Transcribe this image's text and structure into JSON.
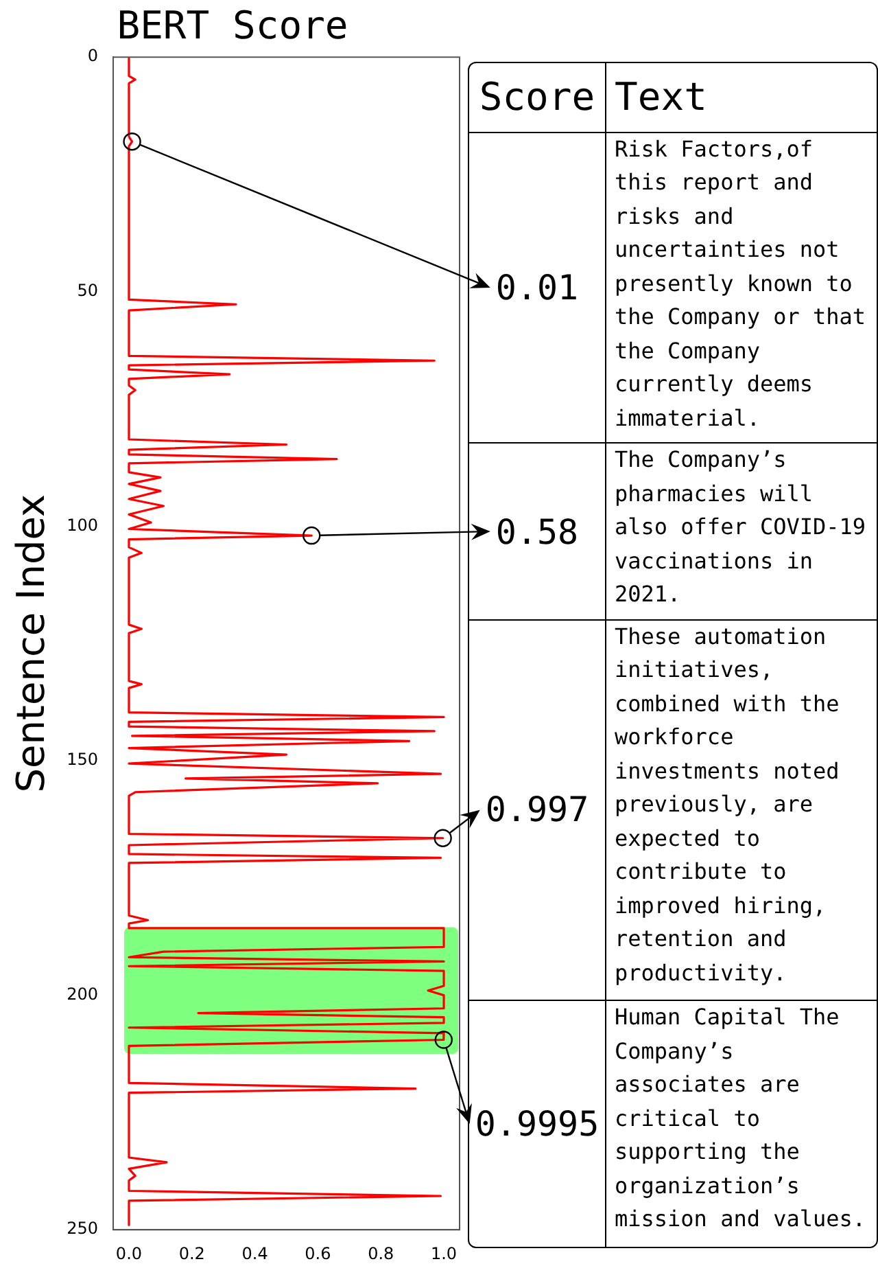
{
  "chart_data": {
    "type": "line",
    "title": "BERT Score",
    "ylabel": "Sentence Index",
    "xlim": [
      -0.05,
      1.05
    ],
    "ylim": [
      250,
      0
    ],
    "xticks": [
      {
        "value": 0,
        "label": "0.0"
      },
      {
        "value": 0.2,
        "label": "0.2"
      },
      {
        "value": 0.4,
        "label": "0.4"
      },
      {
        "value": 0.6,
        "label": "0.6"
      },
      {
        "value": 0.8,
        "label": "0.8"
      },
      {
        "value": 1,
        "label": "1.0"
      }
    ],
    "yticks": [
      0,
      50,
      100,
      150,
      200,
      250
    ],
    "grid": false,
    "legend": false,
    "marker": "none",
    "series": [
      {
        "color": "#ff0000",
        "x": [
          0,
          0,
          0.02,
          0,
          0,
          0.01,
          0,
          0,
          0.34,
          0,
          0,
          0.97,
          0,
          0,
          0.32,
          0,
          0,
          0.02,
          0,
          0,
          0.5,
          0,
          0,
          0.66,
          0,
          0,
          0.1,
          0,
          0.1,
          0,
          0.11,
          0,
          0.07,
          0,
          0.58,
          0,
          0,
          0.04,
          0,
          0,
          0.04,
          0,
          0,
          0.04,
          0,
          0,
          1.0,
          0,
          0,
          0.97,
          0.01,
          0.89,
          0,
          0.5,
          0,
          0.99,
          0.18,
          0.79,
          0.02,
          0,
          0,
          0.997,
          0,
          0,
          0.99,
          0,
          0,
          0.06,
          0,
          0,
          1.0,
          1.0,
          0.11,
          0,
          1.0,
          0,
          1.0,
          1.0,
          0.95,
          1.0,
          1.0,
          0.22,
          1.0,
          1.0,
          0,
          1.0,
          0.9995,
          0,
          0,
          0.91,
          0,
          0,
          0.12,
          0,
          0.02,
          0,
          0,
          0.99,
          0,
          0
        ],
        "values": [
          0,
          4,
          4.8,
          5.6,
          17,
          18,
          19,
          51.7,
          52.7,
          54,
          63.7,
          64.7,
          65.7,
          66.6,
          67.6,
          68.6,
          70,
          71,
          72,
          81.5,
          82.6,
          83.7,
          84.7,
          85.7,
          86.6,
          88.5,
          89.6,
          91,
          92.5,
          94.2,
          95.7,
          97.5,
          99.2,
          100.6,
          102,
          102.8,
          104.5,
          105.7,
          106.7,
          121,
          121.9,
          122.8,
          133,
          133.7,
          134.5,
          139.7,
          140.7,
          141.7,
          142.7,
          143.7,
          144.7,
          145.8,
          147.3,
          148.7,
          150.6,
          152.8,
          153.8,
          154.8,
          156.7,
          157.5,
          165.6,
          166.5,
          168,
          169.9,
          170.7,
          171.8,
          183,
          184,
          184.7,
          185.7,
          185.7,
          189.7,
          190.7,
          191.9,
          192.8,
          193.8,
          194.8,
          198,
          199,
          200,
          202.8,
          203.8,
          204.7,
          205.9,
          206.9,
          208.1,
          209.5,
          210.8,
          218.7,
          219.9,
          220.8,
          234.6,
          235.6,
          237,
          238.5,
          239.5,
          241.7,
          242.8,
          243.8,
          249
        ]
      }
    ],
    "bands": [
      {
        "axis": "y",
        "from": 185.5,
        "to": 212.5,
        "color": "#00ff00"
      }
    ],
    "annotations": [
      "Score",
      "Text",
      {
        "text": "0.01",
        "x": 0.01,
        "y": 18
      },
      "Risk Factors,of this report and risks and uncertainties not presently known to the Company or that the Company currently deems immaterial.",
      {
        "text": "0.58",
        "x": 0.58,
        "y": 102
      },
      "The Company’s pharmacies will also offer COVID-19 vaccinations in 2021.",
      {
        "text": "0.997",
        "x": 0.997,
        "y": 166.5
      },
      "These automation initiatives, combined with the workforce investments noted previously, are expected to contribute to improved hiring, retention and productivity.",
      {
        "text": "0.9995",
        "x": 0.9995,
        "y": 209.5
      },
      "Human Capital The Company’s associates are critical to supporting the organization’s mission and values."
    ]
  }
}
